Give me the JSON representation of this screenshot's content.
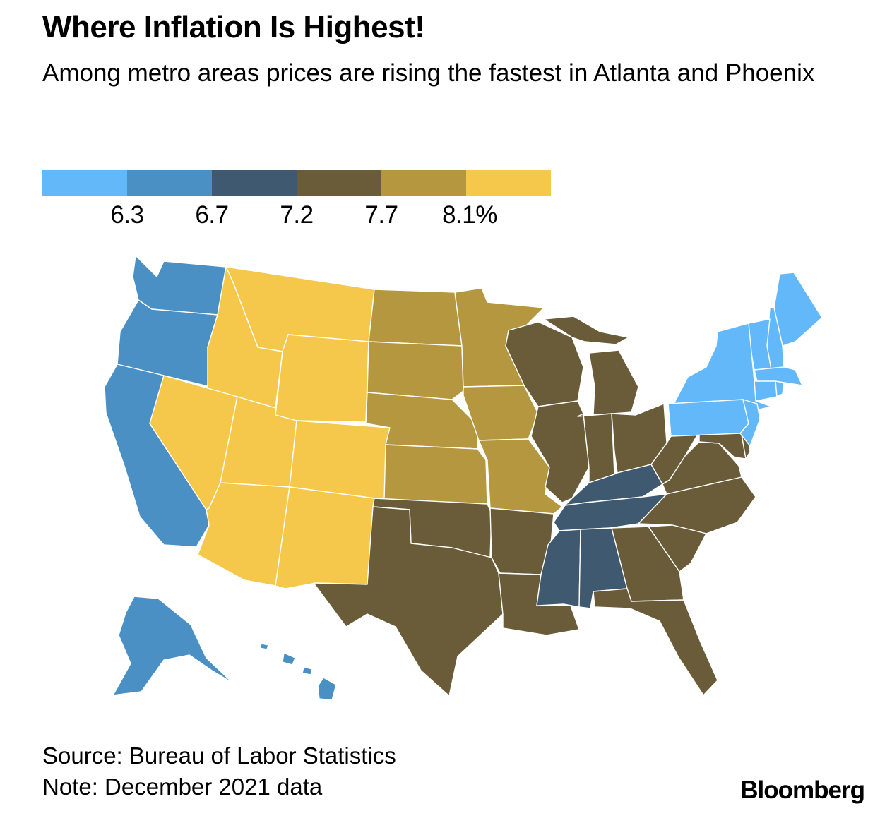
{
  "title": "Where Inflation Is Highest!",
  "subtitle": "Among metro areas prices are rising the fastest in Atlanta and Phoenix",
  "legend": {
    "colors": [
      "#62B8F8",
      "#4A90C4",
      "#3F5A70",
      "#6A5C39",
      "#B4973E",
      "#F5C84B"
    ],
    "ticks": [
      "6.3",
      "6.7",
      "7.2",
      "7.7",
      "8.1%"
    ]
  },
  "regions": [
    {
      "name": "Pacific",
      "states": [
        "WA",
        "OR",
        "CA",
        "AK",
        "HI"
      ],
      "bin": 1,
      "color": "#4A90C4"
    },
    {
      "name": "Mountain",
      "states": [
        "MT",
        "ID",
        "WY",
        "NV",
        "UT",
        "CO",
        "AZ",
        "NM"
      ],
      "bin": 5,
      "color": "#F5C84B"
    },
    {
      "name": "West North Central",
      "states": [
        "ND",
        "SD",
        "NE",
        "KS",
        "MN",
        "IA",
        "MO"
      ],
      "bin": 4,
      "color": "#B4973E"
    },
    {
      "name": "West South Central",
      "states": [
        "TX",
        "OK",
        "AR",
        "LA"
      ],
      "bin": 3,
      "color": "#6A5C39"
    },
    {
      "name": "East North Central",
      "states": [
        "WI",
        "MI",
        "IL",
        "IN",
        "OH"
      ],
      "bin": 3,
      "color": "#6A5C39"
    },
    {
      "name": "East South Central",
      "states": [
        "KY",
        "TN",
        "MS",
        "AL"
      ],
      "bin": 2,
      "color": "#3F5A70"
    },
    {
      "name": "South Atlantic",
      "states": [
        "WV",
        "VA",
        "NC",
        "SC",
        "GA",
        "FL",
        "MD",
        "DE"
      ],
      "bin": 3,
      "color": "#6A5C39"
    },
    {
      "name": "Northeast",
      "states": [
        "ME",
        "NH",
        "VT",
        "MA",
        "RI",
        "CT",
        "NY",
        "PA",
        "NJ"
      ],
      "bin": 0,
      "color": "#62B8F8"
    }
  ],
  "footer": {
    "source": "Source: Bureau of Labor Statistics",
    "note": "Note: December 2021 data",
    "brand": "Bloomberg"
  }
}
